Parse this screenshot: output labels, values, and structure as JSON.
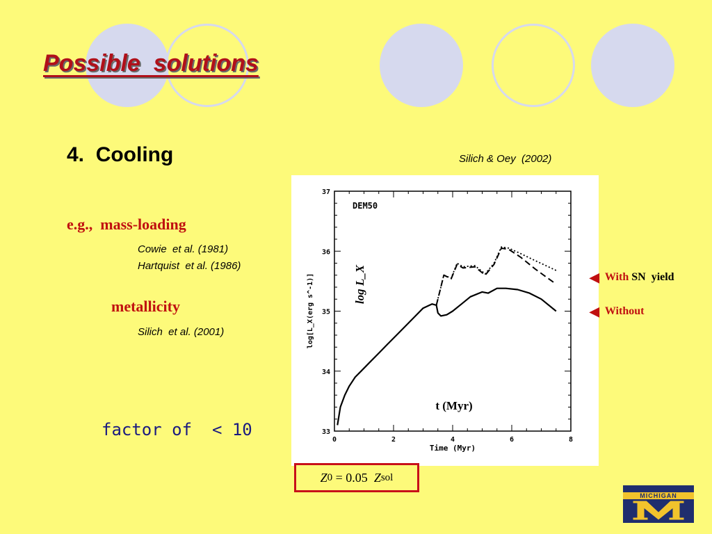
{
  "slide": {
    "title": "Possible  solutions",
    "section": "4.  Cooling",
    "citation": "Silich & Oey  (2002)",
    "example_label": "e.g.,  mass-loading",
    "refs_mass_loading": [
      "Cowie  et al. (1981)",
      "Hartquist  et al. (1986)"
    ],
    "metallicity_label": "metallicity",
    "ref_metallicity": "Silich  et al. (2001)",
    "factor_text": "factor of  < 10",
    "metallicity_box": {
      "z0": "Z",
      "z0_sub": "0",
      "eq": " = 0.05  ",
      "zsol": "Z",
      "zsol_sub": "sol"
    },
    "legend": [
      {
        "label_red": "With",
        "label_black": " SN  yield"
      },
      {
        "label_red": "Without",
        "label_black": ""
      }
    ],
    "logo_text": "MICHIGAN",
    "colors": {
      "background": "#fdfa7a",
      "title_red": "#b0101a",
      "accent_red": "#c01010",
      "factor_blue": "#1a1a80"
    }
  },
  "chart_data": {
    "type": "line",
    "title": "DEM50",
    "xlabel": "Time (Myr)",
    "ylabel": "log[L_X(erg s^-1)]",
    "overlay_ylabel": "log  L_X",
    "overlay_xlabel": "t  (Myr)",
    "xlim": [
      0,
      8
    ],
    "ylim": [
      33,
      37
    ],
    "xticks": [
      0,
      2,
      4,
      6,
      8
    ],
    "yticks": [
      33,
      34,
      35,
      36,
      37
    ],
    "xtick_labels": [
      "0",
      "2",
      "4",
      "6",
      "8"
    ],
    "ytick_labels": [
      "33",
      "34",
      "35",
      "36",
      "37"
    ],
    "series": [
      {
        "style": "solid",
        "x": [
          0.1,
          0.2,
          0.35,
          0.5,
          0.7,
          0.9,
          1.2,
          1.5,
          1.8,
          2.1,
          2.4,
          2.7,
          3.0,
          3.3,
          3.45,
          3.5,
          3.6,
          3.8,
          4.0,
          4.3,
          4.6,
          5.0,
          5.2,
          5.5,
          5.8,
          6.2,
          6.6,
          7.0,
          7.5
        ],
        "y": [
          33.1,
          33.4,
          33.6,
          33.75,
          33.9,
          34.0,
          34.15,
          34.3,
          34.45,
          34.6,
          34.75,
          34.9,
          35.05,
          35.12,
          35.1,
          34.97,
          34.92,
          34.94,
          35.0,
          35.12,
          35.24,
          35.32,
          35.3,
          35.38,
          35.38,
          35.36,
          35.3,
          35.2,
          35.0
        ]
      },
      {
        "style": "dashed",
        "x": [
          3.45,
          3.55,
          3.7,
          3.95,
          4.15,
          4.35,
          4.75,
          5.1,
          5.4,
          5.65,
          5.9,
          6.3,
          6.8,
          7.5
        ],
        "y": [
          35.1,
          35.3,
          35.6,
          35.54,
          35.78,
          35.72,
          35.74,
          35.6,
          35.78,
          36.05,
          36.03,
          35.9,
          35.7,
          35.45
        ]
      },
      {
        "style": "dotted",
        "x": [
          3.45,
          3.55,
          3.7,
          3.95,
          4.15,
          4.35,
          4.75,
          5.1,
          5.4,
          5.65,
          5.9,
          6.3,
          6.8,
          7.5
        ],
        "y": [
          35.1,
          35.3,
          35.6,
          35.55,
          35.8,
          35.74,
          35.76,
          35.62,
          35.8,
          36.07,
          36.05,
          35.96,
          35.84,
          35.68
        ]
      }
    ]
  }
}
